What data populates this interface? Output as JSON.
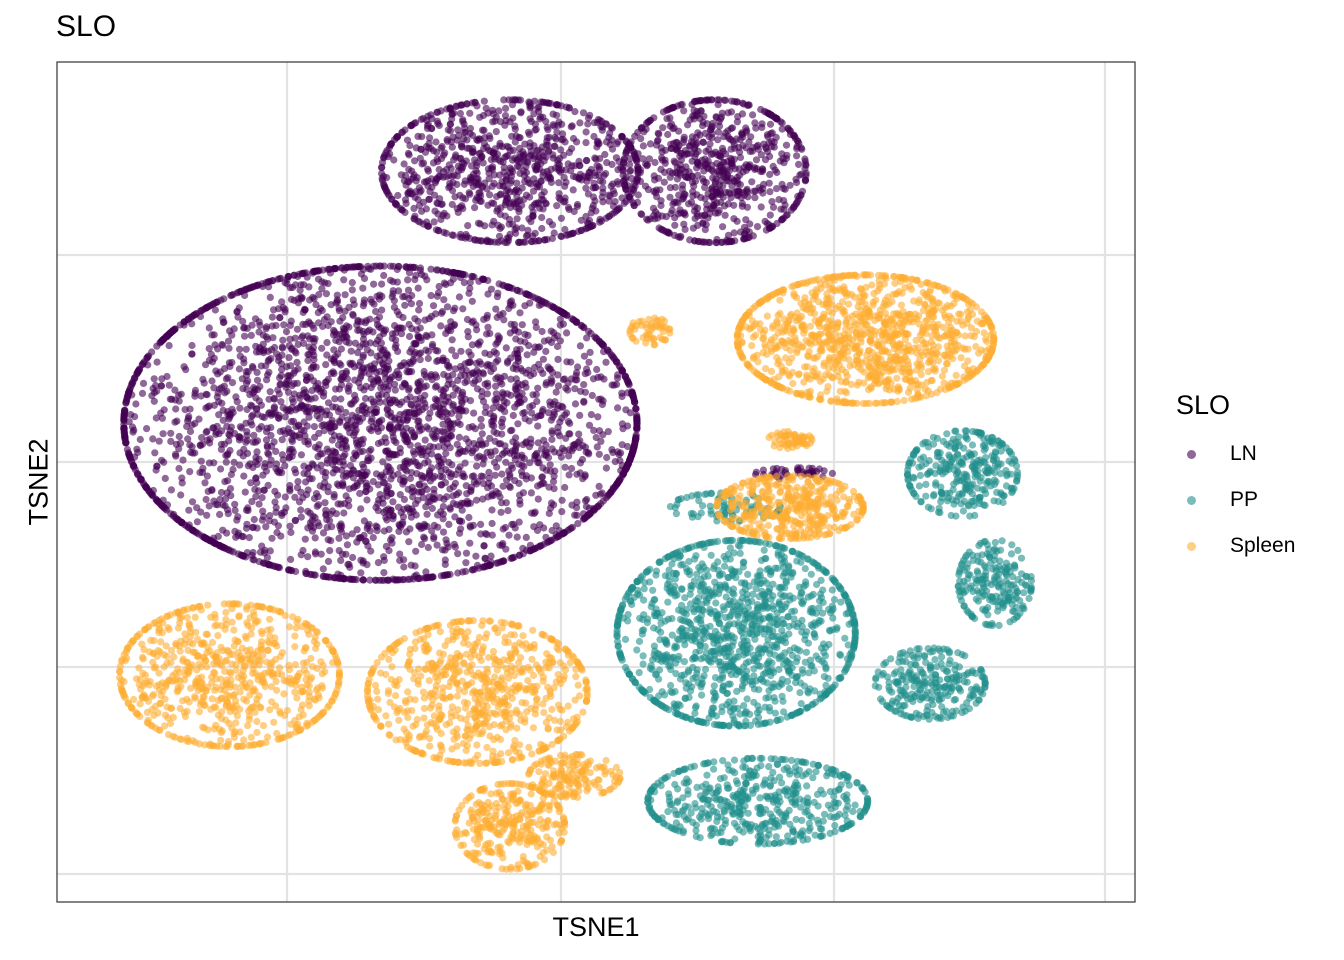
{
  "chart_data": {
    "type": "scatter",
    "title": "SLO",
    "xlabel": "TSNE1",
    "ylabel": "TSNE2",
    "xlim": [
      0,
      100
    ],
    "ylim": [
      0,
      100
    ],
    "grid": true,
    "tick_labels": "none",
    "legend": {
      "title": "SLO",
      "position": "right",
      "entries": [
        "LN",
        "PP",
        "Spleen"
      ]
    },
    "series": [
      {
        "name": "LN",
        "color": "#440154",
        "clusters": [
          {
            "cx": 30,
            "cy": 57,
            "sx": 14,
            "sy": 11,
            "n": 3200
          },
          {
            "cx": 42,
            "cy": 87,
            "sx": 7,
            "sy": 5,
            "n": 900
          },
          {
            "cx": 61,
            "cy": 87,
            "sx": 5,
            "sy": 5,
            "n": 700
          },
          {
            "cx": 68.5,
            "cy": 51,
            "sx": 2.2,
            "sy": 0.4,
            "n": 40
          }
        ]
      },
      {
        "name": "PP",
        "color": "#21908C",
        "clusters": [
          {
            "cx": 63,
            "cy": 32,
            "sx": 6.5,
            "sy": 6.5,
            "n": 1200
          },
          {
            "cx": 65,
            "cy": 12,
            "sx": 6,
            "sy": 3,
            "n": 500
          },
          {
            "cx": 84,
            "cy": 51,
            "sx": 3,
            "sy": 3,
            "n": 300
          },
          {
            "cx": 87,
            "cy": 38,
            "sx": 2,
            "sy": 3,
            "n": 200
          },
          {
            "cx": 81,
            "cy": 26,
            "sx": 3,
            "sy": 2.5,
            "n": 250
          },
          {
            "cx": 62,
            "cy": 47,
            "sx": 3,
            "sy": 1,
            "n": 80
          }
        ]
      },
      {
        "name": "Spleen",
        "color": "#FDAE32",
        "clusters": [
          {
            "cx": 75,
            "cy": 67,
            "sx": 7,
            "sy": 4.5,
            "n": 1100
          },
          {
            "cx": 16,
            "cy": 27,
            "sx": 6,
            "sy": 5,
            "n": 700
          },
          {
            "cx": 39,
            "cy": 25,
            "sx": 6,
            "sy": 5,
            "n": 700
          },
          {
            "cx": 42,
            "cy": 9,
            "sx": 3,
            "sy": 3,
            "n": 300
          },
          {
            "cx": 48,
            "cy": 15,
            "sx": 2.5,
            "sy": 1.5,
            "n": 150
          },
          {
            "cx": 68,
            "cy": 47,
            "sx": 4,
            "sy": 2.2,
            "n": 400
          },
          {
            "cx": 68,
            "cy": 55,
            "sx": 1.2,
            "sy": 0.6,
            "n": 60
          },
          {
            "cx": 55,
            "cy": 68,
            "sx": 1.1,
            "sy": 1,
            "n": 50
          }
        ]
      }
    ]
  }
}
